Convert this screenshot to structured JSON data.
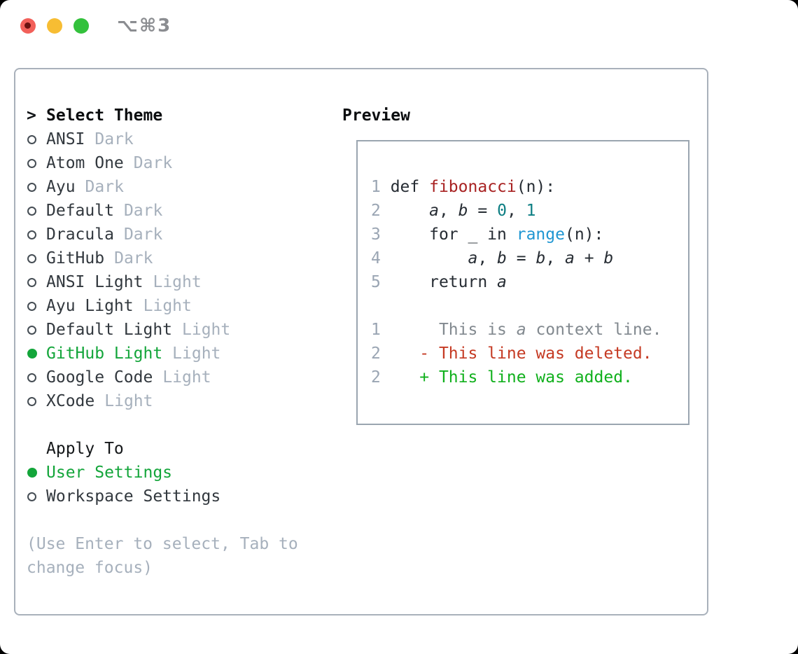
{
  "window": {
    "title": "⌥⌘3",
    "traffic_lights": {
      "close": "close",
      "minimize": "minimize",
      "zoom": "zoom"
    }
  },
  "colors": {
    "selection_green": "#13a53a",
    "diff_added_green": "#10b01c",
    "diff_deleted_red": "#c53a23",
    "function_red": "#a82222",
    "number_teal": "#0d7e83",
    "builtin_blue": "#1f96d2",
    "muted_gray": "#a6b0bc",
    "context_gray": "#82898f",
    "panel_border": "#a9b1bb"
  },
  "theme_picker": {
    "prompt_marker": ">",
    "title": "Select Theme",
    "themes": [
      {
        "name": "ANSI",
        "variant": "Dark",
        "selected": false
      },
      {
        "name": "Atom One",
        "variant": "Dark",
        "selected": false
      },
      {
        "name": "Ayu",
        "variant": "Dark",
        "selected": false
      },
      {
        "name": "Default",
        "variant": "Dark",
        "selected": false
      },
      {
        "name": "Dracula",
        "variant": "Dark",
        "selected": false
      },
      {
        "name": "GitHub",
        "variant": "Dark",
        "selected": false
      },
      {
        "name": "ANSI Light",
        "variant": "Light",
        "selected": false
      },
      {
        "name": "Ayu Light",
        "variant": "Light",
        "selected": false
      },
      {
        "name": "Default Light",
        "variant": "Light",
        "selected": false
      },
      {
        "name": "GitHub Light",
        "variant": "Light",
        "selected": true
      },
      {
        "name": "Google Code",
        "variant": "Light",
        "selected": false
      },
      {
        "name": "XCode",
        "variant": "Light",
        "selected": false
      }
    ],
    "apply_to": {
      "title": "Apply To",
      "options": [
        {
          "name": "User Settings",
          "selected": true
        },
        {
          "name": "Workspace Settings",
          "selected": false
        }
      ]
    },
    "hint_lines": [
      "(Use Enter to select, Tab to",
      "change focus)"
    ]
  },
  "preview": {
    "title": "Preview",
    "code_lines": [
      [
        {
          "t": "1",
          "c": "ln"
        },
        {
          "t": " def "
        },
        {
          "t": "fibonacci",
          "c": "fn"
        },
        {
          "t": "(n):"
        }
      ],
      [
        {
          "t": "2",
          "c": "ln"
        },
        {
          "t": "     "
        },
        {
          "t": "a",
          "c": "var"
        },
        {
          "t": ", "
        },
        {
          "t": "b",
          "c": "var"
        },
        {
          "t": " = "
        },
        {
          "t": "0",
          "c": "num"
        },
        {
          "t": ", "
        },
        {
          "t": "1",
          "c": "num"
        }
      ],
      [
        {
          "t": "3",
          "c": "ln"
        },
        {
          "t": "     for _ in "
        },
        {
          "t": "range",
          "c": "bi"
        },
        {
          "t": "(n):"
        }
      ],
      [
        {
          "t": "4",
          "c": "ln"
        },
        {
          "t": "         "
        },
        {
          "t": "a",
          "c": "var"
        },
        {
          "t": ", "
        },
        {
          "t": "b",
          "c": "var"
        },
        {
          "t": " = "
        },
        {
          "t": "b",
          "c": "var"
        },
        {
          "t": ", "
        },
        {
          "t": "a",
          "c": "var"
        },
        {
          "t": " + "
        },
        {
          "t": "b",
          "c": "var"
        }
      ],
      [
        {
          "t": "5",
          "c": "ln"
        },
        {
          "t": "     return "
        },
        {
          "t": "a",
          "c": "var"
        }
      ],
      [],
      [
        {
          "t": "1",
          "c": "ln"
        },
        {
          "t": "      "
        },
        {
          "t": "This is ",
          "c": "ctx"
        },
        {
          "t": "a",
          "c": "ctx-var"
        },
        {
          "t": " context line.",
          "c": "ctx"
        }
      ],
      [
        {
          "t": "2",
          "c": "ln"
        },
        {
          "t": "    "
        },
        {
          "t": "- This line was deleted.",
          "c": "del"
        }
      ],
      [
        {
          "t": "2",
          "c": "ln"
        },
        {
          "t": "    "
        },
        {
          "t": "+ This line was added.",
          "c": "add"
        }
      ]
    ]
  }
}
